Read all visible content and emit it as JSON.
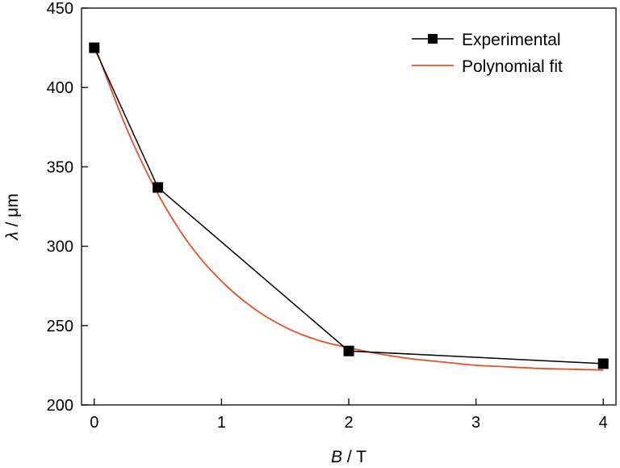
{
  "chart_data": {
    "type": "line",
    "title": "",
    "xlabel_var": "B",
    "xlabel_unit": " / T",
    "ylabel_var": "λ",
    "ylabel_unit": " / μm",
    "xlim": [
      -0.1,
      4.1
    ],
    "ylim": [
      200,
      450
    ],
    "xticks": [
      0,
      1,
      2,
      3,
      4
    ],
    "xtick_labels": [
      "0",
      "1",
      "2",
      "3",
      "4"
    ],
    "yticks": [
      200,
      250,
      300,
      350,
      400,
      450
    ],
    "ytick_labels": [
      "200",
      "250",
      "300",
      "350",
      "400",
      "450"
    ],
    "grid": false,
    "legend_position": "top-right",
    "series": [
      {
        "name": "Experimental",
        "style": "line-with-square-markers",
        "color": "#000000",
        "x": [
          0,
          0.5,
          2,
          4
        ],
        "y": [
          425,
          337,
          234,
          226
        ]
      },
      {
        "name": "Polynomial fit",
        "style": "smooth-line",
        "color": "#e0532a",
        "x": [
          0,
          0.25,
          0.5,
          0.75,
          1.0,
          1.25,
          1.5,
          1.75,
          2.0,
          2.25,
          2.5,
          2.75,
          3.0,
          3.25,
          3.5,
          3.75,
          4.0
        ],
        "y": [
          427,
          375,
          333,
          301,
          278,
          261,
          249,
          241,
          236,
          232,
          229,
          227,
          225,
          224,
          223,
          222.5,
          222
        ]
      }
    ]
  }
}
